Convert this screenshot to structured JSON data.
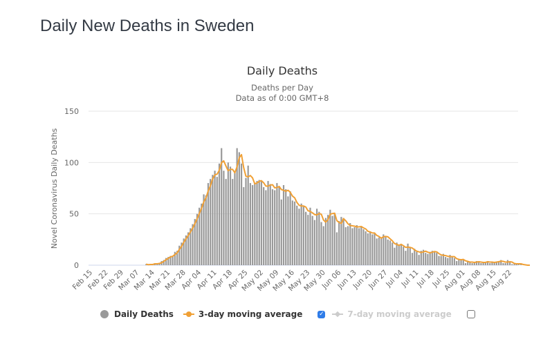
{
  "page": {
    "title": "Daily New Deaths in Sweden"
  },
  "chart_data": {
    "type": "bar",
    "title": "Daily Deaths",
    "subtitle_lines": [
      "Deaths per Day",
      "Data as of 0:00 GMT+8"
    ],
    "ylabel": "Novel Coronavirus Daily Deaths",
    "xlabel": "",
    "ylim": [
      0,
      150
    ],
    "yticks": [
      0,
      50,
      100,
      150
    ],
    "grid": true,
    "x_start": "Feb 15",
    "x_ticks": [
      "Feb 15",
      "Feb 22",
      "Feb 29",
      "Mar 07",
      "Mar 14",
      "Mar 21",
      "Mar 28",
      "Apr 04",
      "Apr 11",
      "Apr 18",
      "Apr 25",
      "May 02",
      "May 09",
      "May 16",
      "May 23",
      "May 30",
      "Jun 06",
      "Jun 13",
      "Jun 20",
      "Jun 27",
      "Jul 04",
      "Jul 11",
      "Jul 18",
      "Jul 25",
      "Aug 01",
      "Aug 08",
      "Aug 15",
      "Aug 22"
    ],
    "series": [
      {
        "name": "Daily Deaths",
        "color": "#999999",
        "type": "bar",
        "start_day_offset": 25,
        "values": [
          1,
          0,
          1,
          1,
          2,
          1,
          2,
          4,
          5,
          7,
          8,
          9,
          9,
          13,
          14,
          19,
          22,
          26,
          29,
          32,
          36,
          40,
          45,
          50,
          56,
          60,
          69,
          68,
          80,
          84,
          88,
          92,
          86,
          99,
          114,
          92,
          84,
          100,
          96,
          84,
          90,
          114,
          110,
          99,
          76,
          85,
          97,
          80,
          78,
          80,
          82,
          83,
          82,
          76,
          73,
          82,
          79,
          74,
          73,
          80,
          77,
          64,
          78,
          74,
          67,
          72,
          63,
          62,
          58,
          55,
          60,
          58,
          52,
          49,
          56,
          48,
          44,
          55,
          52,
          42,
          38,
          46,
          49,
          54,
          48,
          50,
          32,
          43,
          47,
          46,
          37,
          38,
          41,
          36,
          37,
          39,
          36,
          38,
          35,
          33,
          31,
          33,
          30,
          31,
          26,
          27,
          26,
          30,
          28,
          25,
          24,
          22,
          17,
          22,
          19,
          20,
          18,
          14,
          21,
          17,
          12,
          16,
          13,
          10,
          14,
          15,
          12,
          11,
          13,
          14,
          13,
          12,
          9,
          9,
          11,
          8,
          7,
          10,
          8,
          7,
          4,
          6,
          6,
          5,
          2,
          4,
          3,
          2,
          3,
          4,
          3,
          2,
          3,
          3,
          4,
          2,
          3,
          3,
          3,
          4,
          5,
          2,
          2,
          5,
          3,
          1,
          1,
          2,
          1,
          1,
          0,
          0,
          0,
          0
        ],
        "note": "values estimated from bar heights; one bar per day starting Mar 11"
      },
      {
        "name": "3-day moving average",
        "color": "#f0a035",
        "type": "line",
        "visible": true
      },
      {
        "name": "7-day moving average",
        "color": "#cccccc",
        "type": "line",
        "visible": false
      }
    ],
    "legend": "bottom-center"
  },
  "legend": {
    "items": [
      {
        "label": "Daily Deaths"
      },
      {
        "label": "3-day moving average"
      },
      {
        "label": "7-day moving average"
      }
    ],
    "checkbox_3day_checked": "✓"
  }
}
